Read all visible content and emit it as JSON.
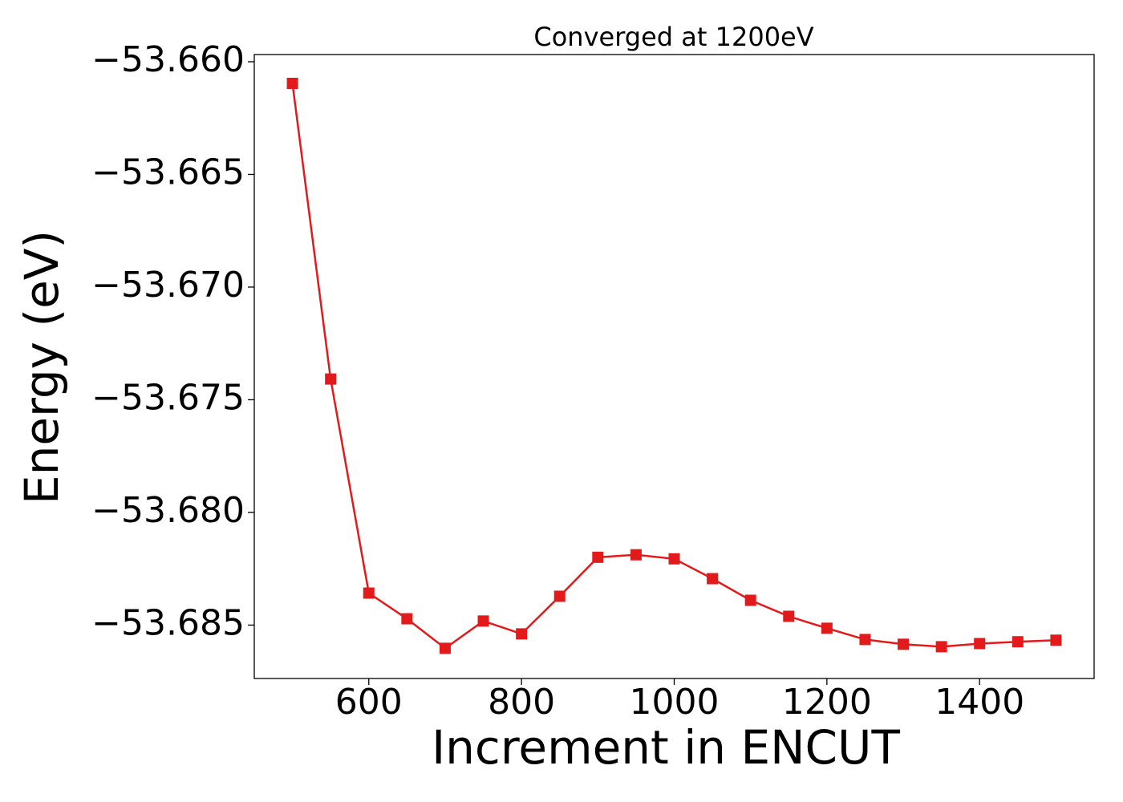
{
  "chart_data": {
    "type": "line",
    "title": "Converged at 1200eV",
    "x_label": "Increment in ENCUT",
    "y_label": "Energy (eV)",
    "x": [
      500,
      550,
      600,
      650,
      700,
      750,
      800,
      850,
      900,
      950,
      1000,
      1050,
      1100,
      1150,
      1200,
      1250,
      1300,
      1350,
      1400,
      1450,
      1500
    ],
    "series": [
      {
        "color": "#e31a1c",
        "values": [
          -53.66096,
          -53.67408,
          -53.68358,
          -53.68472,
          -53.68603,
          -53.68482,
          -53.68539,
          -53.68372,
          -53.68199,
          -53.68188,
          -53.68206,
          -53.68294,
          -53.6839,
          -53.68461,
          -53.68514,
          -53.68564,
          -53.68585,
          -53.68596,
          -53.68582,
          -53.68574,
          -53.68567
        ]
      }
    ],
    "xlim": [
      450,
      1550
    ],
    "ylim": [
      -53.68737,
      -53.65968
    ],
    "xticks": [
      600,
      800,
      1000,
      1200,
      1400
    ],
    "yticks": [
      {
        "value": -53.66,
        "label": "−53.660"
      },
      {
        "value": -53.665,
        "label": "−53.665"
      },
      {
        "value": -53.67,
        "label": "−53.670"
      },
      {
        "value": -53.675,
        "label": "−53.675"
      },
      {
        "value": -53.68,
        "label": "−53.680"
      },
      {
        "value": -53.685,
        "label": "−53.685"
      }
    ],
    "grid": false,
    "marker": "square"
  }
}
